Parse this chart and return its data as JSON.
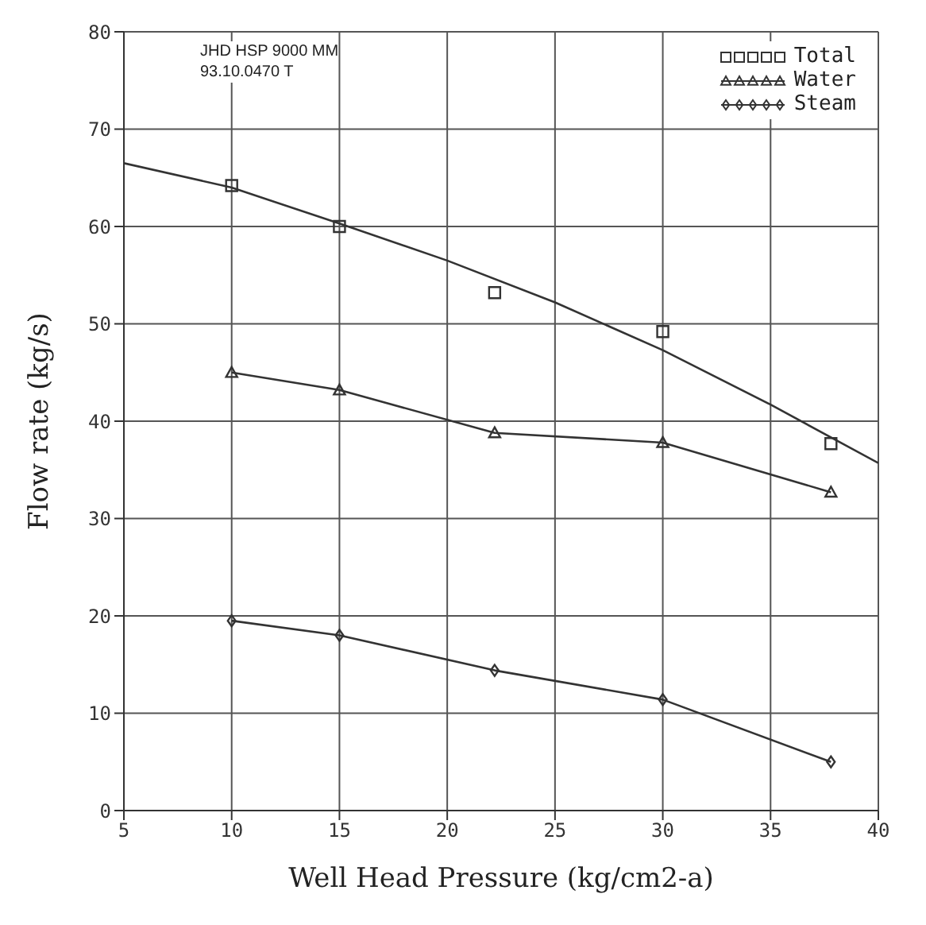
{
  "chart_data": {
    "type": "line",
    "xlabel": "Well Head Pressure (kg/cm2-a)",
    "ylabel": "Flow rate (kg/s)",
    "annotations": [
      "JHD HSP 9000 MM",
      "93.10.0470 T"
    ],
    "xlim": [
      5,
      40
    ],
    "xticks": [
      5,
      10,
      15,
      20,
      25,
      30,
      35,
      40
    ],
    "ylim": [
      0,
      80
    ],
    "yticks": [
      0,
      10,
      20,
      30,
      40,
      50,
      60,
      70,
      80
    ],
    "grid": true,
    "legend": "top right",
    "series": [
      {
        "name": "Total",
        "type": "scatter",
        "marker": "square",
        "color": "#333333",
        "x": [
          10,
          15,
          22.2,
          30,
          37.8
        ],
        "values": [
          64.2,
          60,
          53.2,
          49.2,
          37.7
        ]
      },
      {
        "type": "line",
        "marker": "none",
        "color": "#333333",
        "x": [
          5,
          10,
          15,
          20,
          25,
          30,
          35,
          40
        ],
        "values": [
          66.5,
          64,
          60.3,
          56.5,
          52.2,
          47.3,
          41.7,
          35.7
        ]
      },
      {
        "name": "Water",
        "type": "line",
        "marker": "triangle",
        "color": "#333333",
        "x": [
          10,
          15,
          22.2,
          30,
          37.8
        ],
        "values": [
          45,
          43.2,
          38.8,
          37.8,
          32.7
        ]
      },
      {
        "name": "Steam",
        "type": "line",
        "marker": "diamond",
        "color": "#333333",
        "x": [
          10,
          15,
          22.2,
          30,
          37.8
        ],
        "values": [
          19.5,
          18,
          14.4,
          11.4,
          5
        ]
      }
    ]
  }
}
